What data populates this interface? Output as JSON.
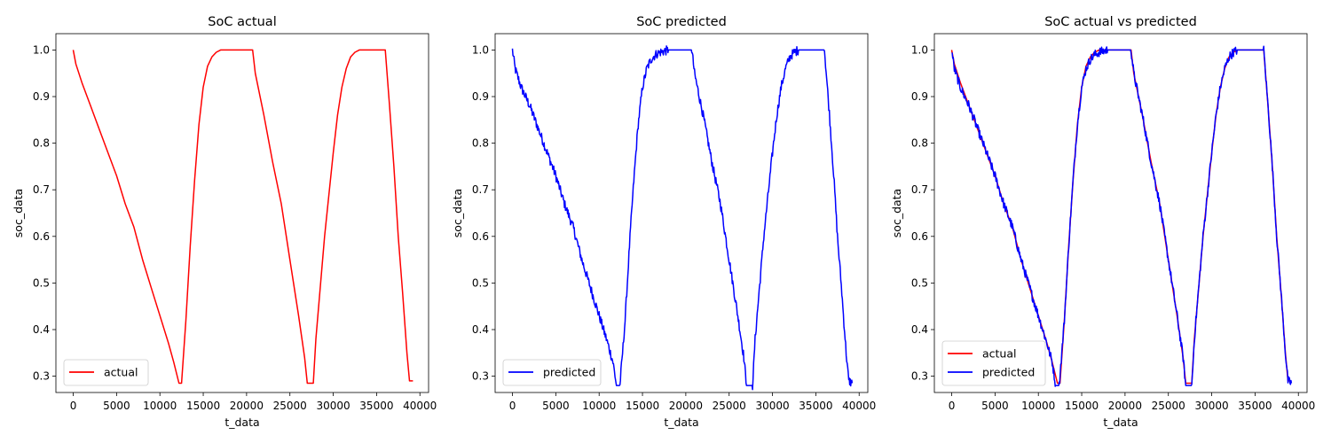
{
  "chart_data": [
    {
      "type": "line",
      "title": "SoC actual",
      "xlabel": "t_data",
      "ylabel": "soc_data",
      "xlim": [
        -2000,
        41000
      ],
      "ylim": [
        0.265,
        1.035
      ],
      "xticks": [
        0,
        5000,
        10000,
        15000,
        20000,
        25000,
        30000,
        35000,
        40000
      ],
      "yticks": [
        0.3,
        0.4,
        0.5,
        0.6,
        0.7,
        0.8,
        0.9,
        1.0
      ],
      "xtick_labels": [
        "0",
        "5000",
        "10000",
        "15000",
        "20000",
        "25000",
        "30000",
        "35000",
        "40000"
      ],
      "ytick_labels": [
        "0.3",
        "0.4",
        "0.5",
        "0.6",
        "0.7",
        "0.8",
        "0.9",
        "1.0"
      ],
      "grid": false,
      "legend": "lower-left",
      "series": [
        {
          "name": "actual",
          "color": "#ff0000",
          "noise": 0,
          "x": [
            0,
            300,
            1000,
            2000,
            3000,
            4000,
            5000,
            6000,
            7000,
            8000,
            9000,
            10000,
            11000,
            11600,
            12200,
            12500,
            13000,
            13500,
            14000,
            14500,
            15000,
            15500,
            16000,
            16500,
            17000,
            17500,
            18000,
            20700,
            21000,
            22000,
            23000,
            24000,
            25000,
            26000,
            26700,
            27000,
            27700,
            28000,
            29000,
            30000,
            30500,
            31000,
            31500,
            32000,
            32500,
            33000,
            36000,
            36500,
            37000,
            37500,
            38000,
            38500,
            38800,
            39200
          ],
          "y": [
            1.0,
            0.97,
            0.93,
            0.88,
            0.83,
            0.78,
            0.73,
            0.67,
            0.62,
            0.55,
            0.49,
            0.43,
            0.37,
            0.33,
            0.285,
            0.285,
            0.42,
            0.58,
            0.72,
            0.84,
            0.92,
            0.965,
            0.985,
            0.995,
            1.0,
            1.0,
            1.0,
            1.0,
            0.95,
            0.86,
            0.76,
            0.67,
            0.55,
            0.43,
            0.34,
            0.285,
            0.285,
            0.38,
            0.6,
            0.78,
            0.86,
            0.92,
            0.96,
            0.985,
            0.995,
            1.0,
            1.0,
            0.88,
            0.75,
            0.6,
            0.48,
            0.35,
            0.29,
            0.29
          ]
        }
      ]
    },
    {
      "type": "line",
      "title": "SoC predicted",
      "xlabel": "t_data",
      "ylabel": "soc_data",
      "xlim": [
        -2000,
        41000
      ],
      "ylim": [
        0.265,
        1.035
      ],
      "xticks": [
        0,
        5000,
        10000,
        15000,
        20000,
        25000,
        30000,
        35000,
        40000
      ],
      "yticks": [
        0.3,
        0.4,
        0.5,
        0.6,
        0.7,
        0.8,
        0.9,
        1.0
      ],
      "xtick_labels": [
        "0",
        "5000",
        "10000",
        "15000",
        "20000",
        "25000",
        "30000",
        "35000",
        "40000"
      ],
      "ytick_labels": [
        "0.3",
        "0.4",
        "0.5",
        "0.6",
        "0.7",
        "0.8",
        "0.9",
        "1.0"
      ],
      "grid": false,
      "legend": "lower-left",
      "series": [
        {
          "name": "predicted",
          "color": "#0000ff",
          "noise": 0.01,
          "x": [
            0,
            300,
            1000,
            2000,
            3000,
            4000,
            5000,
            6000,
            7000,
            8000,
            9000,
            10000,
            11000,
            11600,
            12000,
            12400,
            13000,
            13500,
            14000,
            14500,
            15000,
            15500,
            16000,
            16500,
            17000,
            18000,
            20700,
            21000,
            22000,
            23000,
            24000,
            25000,
            26000,
            26700,
            27000,
            27700,
            28000,
            29000,
            30000,
            30500,
            31000,
            31500,
            32000,
            32500,
            33000,
            36000,
            36500,
            37000,
            37500,
            38000,
            38500,
            38800,
            39200
          ],
          "y": [
            1.0,
            0.96,
            0.92,
            0.88,
            0.83,
            0.78,
            0.73,
            0.67,
            0.62,
            0.55,
            0.49,
            0.43,
            0.37,
            0.33,
            0.28,
            0.28,
            0.42,
            0.58,
            0.72,
            0.84,
            0.92,
            0.96,
            0.98,
            0.99,
            0.995,
            1.0,
            1.0,
            0.95,
            0.86,
            0.76,
            0.67,
            0.55,
            0.43,
            0.34,
            0.28,
            0.28,
            0.38,
            0.6,
            0.78,
            0.86,
            0.92,
            0.96,
            0.985,
            0.995,
            1.0,
            1.0,
            0.88,
            0.75,
            0.6,
            0.48,
            0.35,
            0.29,
            0.285
          ]
        }
      ]
    },
    {
      "type": "line",
      "title": "SoC actual vs predicted",
      "xlabel": "t_data",
      "ylabel": "soc_data",
      "xlim": [
        -2000,
        41000
      ],
      "ylim": [
        0.265,
        1.035
      ],
      "xticks": [
        0,
        5000,
        10000,
        15000,
        20000,
        25000,
        30000,
        35000,
        40000
      ],
      "yticks": [
        0.3,
        0.4,
        0.5,
        0.6,
        0.7,
        0.8,
        0.9,
        1.0
      ],
      "xtick_labels": [
        "0",
        "5000",
        "10000",
        "15000",
        "20000",
        "25000",
        "30000",
        "35000",
        "40000"
      ],
      "ytick_labels": [
        "0.3",
        "0.4",
        "0.5",
        "0.6",
        "0.7",
        "0.8",
        "0.9",
        "1.0"
      ],
      "grid": false,
      "legend": "lower-left",
      "series": [
        {
          "name": "actual",
          "color": "#ff0000",
          "noise": 0,
          "x": [
            0,
            300,
            1000,
            2000,
            3000,
            4000,
            5000,
            6000,
            7000,
            8000,
            9000,
            10000,
            11000,
            11600,
            12200,
            12500,
            13000,
            13500,
            14000,
            14500,
            15000,
            15500,
            16000,
            16500,
            17000,
            17500,
            18000,
            20700,
            21000,
            22000,
            23000,
            24000,
            25000,
            26000,
            26700,
            27000,
            27700,
            28000,
            29000,
            30000,
            30500,
            31000,
            31500,
            32000,
            32500,
            33000,
            36000,
            36500,
            37000,
            37500,
            38000,
            38500,
            38800,
            39200
          ],
          "y": [
            1.0,
            0.97,
            0.93,
            0.88,
            0.83,
            0.78,
            0.73,
            0.67,
            0.62,
            0.55,
            0.49,
            0.43,
            0.37,
            0.33,
            0.285,
            0.285,
            0.42,
            0.58,
            0.72,
            0.84,
            0.92,
            0.965,
            0.985,
            0.995,
            1.0,
            1.0,
            1.0,
            1.0,
            0.95,
            0.86,
            0.76,
            0.67,
            0.55,
            0.43,
            0.34,
            0.285,
            0.285,
            0.38,
            0.6,
            0.78,
            0.86,
            0.92,
            0.96,
            0.985,
            0.995,
            1.0,
            1.0,
            0.88,
            0.75,
            0.6,
            0.48,
            0.35,
            0.29,
            0.29
          ]
        },
        {
          "name": "predicted",
          "color": "#0000ff",
          "noise": 0.01,
          "x": [
            0,
            300,
            1000,
            2000,
            3000,
            4000,
            5000,
            6000,
            7000,
            8000,
            9000,
            10000,
            11000,
            11600,
            12000,
            12400,
            13000,
            13500,
            14000,
            14500,
            15000,
            15500,
            16000,
            16500,
            17000,
            18000,
            20700,
            21000,
            22000,
            23000,
            24000,
            25000,
            26000,
            26700,
            27000,
            27700,
            28000,
            29000,
            30000,
            30500,
            31000,
            31500,
            32000,
            32500,
            33000,
            36000,
            36500,
            37000,
            37500,
            38000,
            38500,
            38800,
            39200
          ],
          "y": [
            1.0,
            0.96,
            0.92,
            0.88,
            0.83,
            0.78,
            0.73,
            0.67,
            0.62,
            0.55,
            0.49,
            0.43,
            0.37,
            0.33,
            0.28,
            0.28,
            0.42,
            0.58,
            0.72,
            0.84,
            0.92,
            0.96,
            0.98,
            0.99,
            0.995,
            1.0,
            1.0,
            0.95,
            0.86,
            0.76,
            0.67,
            0.55,
            0.43,
            0.34,
            0.28,
            0.28,
            0.38,
            0.6,
            0.78,
            0.86,
            0.92,
            0.96,
            0.985,
            0.995,
            1.0,
            1.0,
            0.88,
            0.75,
            0.6,
            0.48,
            0.35,
            0.29,
            0.285
          ]
        }
      ]
    }
  ]
}
